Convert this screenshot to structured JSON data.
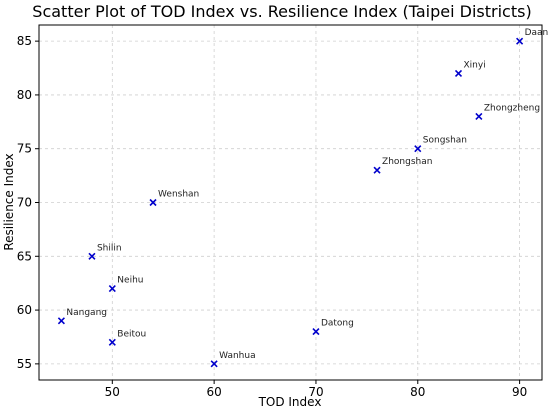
{
  "chart_data": {
    "type": "scatter",
    "title": "Scatter Plot of TOD Index vs. Resilience Index (Taipei Districts)",
    "xlabel": "TOD Index",
    "ylabel": "Resilience Index",
    "xlim": [
      42.8,
      92.2
    ],
    "ylim": [
      53.5,
      86.5
    ],
    "xticks": [
      50,
      60,
      70,
      80,
      90
    ],
    "yticks": [
      55,
      60,
      65,
      70,
      75,
      80,
      85
    ],
    "grid": true,
    "marker": "x",
    "color": "#0000cc",
    "points": [
      {
        "label": "Daan",
        "x": 90,
        "y": 85
      },
      {
        "label": "Xinyi",
        "x": 84,
        "y": 82
      },
      {
        "label": "Zhongzheng",
        "x": 86,
        "y": 78
      },
      {
        "label": "Songshan",
        "x": 80,
        "y": 75
      },
      {
        "label": "Zhongshan",
        "x": 76,
        "y": 73
      },
      {
        "label": "Wenshan",
        "x": 54,
        "y": 70
      },
      {
        "label": "Shilin",
        "x": 48,
        "y": 65
      },
      {
        "label": "Neihu",
        "x": 50,
        "y": 62
      },
      {
        "label": "Nangang",
        "x": 45,
        "y": 59
      },
      {
        "label": "Beitou",
        "x": 50,
        "y": 57
      },
      {
        "label": "Datong",
        "x": 70,
        "y": 58
      },
      {
        "label": "Wanhua",
        "x": 60,
        "y": 55
      }
    ]
  }
}
